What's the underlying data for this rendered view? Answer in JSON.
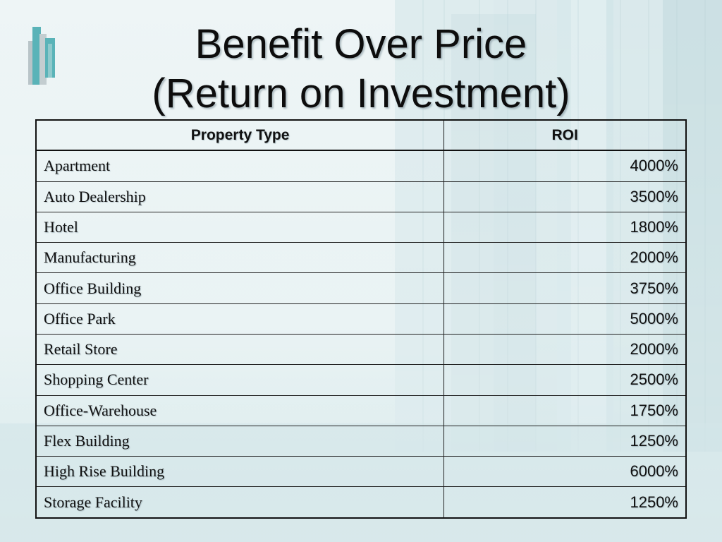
{
  "slide": {
    "title_line1": "Benefit Over Price",
    "title_line2": "(Return on Investment)"
  },
  "table": {
    "headers": [
      "Property Type",
      "ROI"
    ],
    "rows": [
      {
        "property": "Apartment",
        "roi": "4000%"
      },
      {
        "property": "Auto Dealership",
        "roi": "3500%"
      },
      {
        "property": "Hotel",
        "roi": "1800%"
      },
      {
        "property": "Manufacturing",
        "roi": "2000%"
      },
      {
        "property": "Office Building",
        "roi": "3750%"
      },
      {
        "property": "Office Park",
        "roi": "5000%"
      },
      {
        "property": "Retail Store",
        "roi": "2000%"
      },
      {
        "property": "Shopping Center",
        "roi": "2500%"
      },
      {
        "property": "Office-Warehouse",
        "roi": "1750%"
      },
      {
        "property": "Flex Building",
        "roi": "1250%"
      },
      {
        "property": "High Rise Building",
        "roi": "6000%"
      },
      {
        "property": "Storage Facility",
        "roi": "1250%"
      }
    ]
  },
  "colors": {
    "background": "#e6f1f2",
    "logo_teal": "#5ab3b8",
    "logo_gray": "#b9c4c8"
  }
}
